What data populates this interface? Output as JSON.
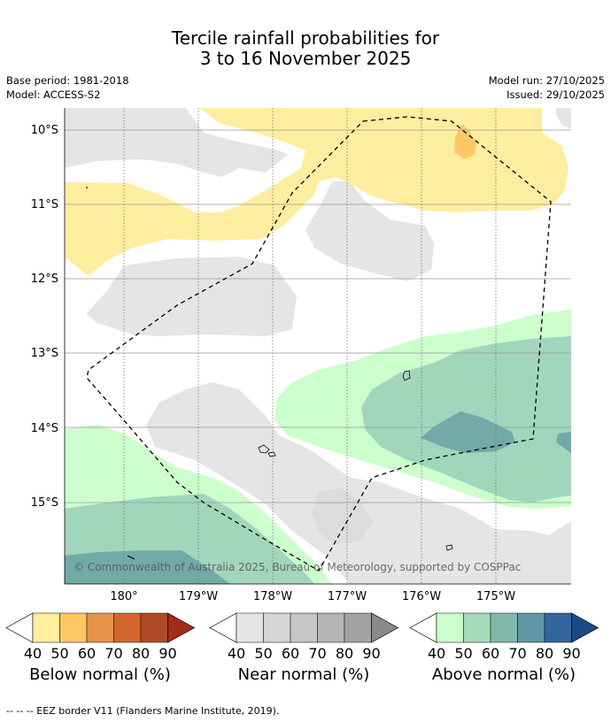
{
  "title": {
    "line1": "Tercile rainfall probabilities for",
    "line2": "3 to 16 November 2025"
  },
  "meta": {
    "base_period": "Base period: 1981-2018",
    "model": "Model: ACCESS-S2",
    "model_run": "Model run: 27/10/2025",
    "issued": "Issued: 29/10/2025"
  },
  "map": {
    "lat_labels": [
      "10°S",
      "11°S",
      "12°S",
      "13°S",
      "14°S",
      "15°S"
    ],
    "lon_labels": [
      "180°",
      "179°W",
      "178°W",
      "177°W",
      "176°W",
      "175°W"
    ],
    "copyright": "© Commonwealth of Australia 2025, Bureau of Meteorology, supported by COSPPac",
    "colors": {
      "below_40": "#ffeda0",
      "below_50": "#fec965",
      "near_40": "#e5e5e5",
      "above_40": "#ccffcc",
      "above_50": "#a1d6bd",
      "above_60": "#72aaa8",
      "above_70": "#5a9aa6"
    }
  },
  "legends": [
    {
      "name": "below",
      "label": "Below normal (%)",
      "ticks": [
        "40",
        "50",
        "60",
        "70",
        "80",
        "90"
      ],
      "colors": [
        "#ffeda0",
        "#fec965",
        "#e4954a",
        "#d4652f",
        "#b04a26",
        "#9f2d1a"
      ]
    },
    {
      "name": "near",
      "label": "Near normal (%)",
      "ticks": [
        "40",
        "50",
        "60",
        "70",
        "80",
        "90"
      ],
      "colors": [
        "#e5e5e5",
        "#d5d5d5",
        "#c6c6c6",
        "#b5b5b5",
        "#a2a2a2",
        "#8a8a8a"
      ]
    },
    {
      "name": "above",
      "label": "Above normal (%)",
      "ticks": [
        "40",
        "50",
        "60",
        "70",
        "80",
        "90"
      ],
      "colors": [
        "#ccffcc",
        "#a6dab8",
        "#82b8ac",
        "#5f97a6",
        "#33669c",
        "#1a4a86"
      ]
    }
  ],
  "footnote": "--  --  -- EEZ border V11 (Flanders Marine Institute, 2019)."
}
